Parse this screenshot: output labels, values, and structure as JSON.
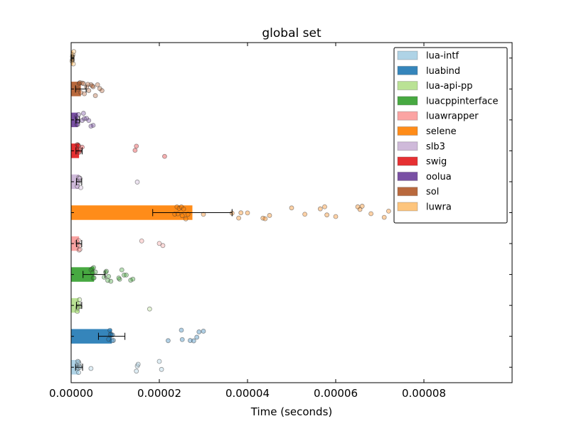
{
  "chart_data": {
    "type": "bar",
    "orientation": "horizontal",
    "title": "global set",
    "xlabel": "Time (seconds)",
    "ylabel": "",
    "xlim": [
      0,
      0.0001
    ],
    "x_ticks": [
      0,
      2e-05,
      4e-05,
      6e-05,
      8e-05
    ],
    "x_tick_labels": [
      "0.00000",
      "0.00002",
      "0.00004",
      "0.00006",
      "0.00008"
    ],
    "y_tick_labels_visible": false,
    "legend_position": "top-right",
    "series": [
      {
        "name": "lua-intf",
        "color": "#a6cee3",
        "mean": 1.8e-06,
        "err": 8e-07,
        "samples": [
          1.5e-06,
          1.6e-06,
          1.7e-06,
          1.8e-06,
          1.9e-06,
          2e-06,
          1.5e-06,
          1.7e-06,
          4.5e-06,
          1.5e-05,
          1.52e-05,
          1.48e-05,
          2.05e-05,
          2e-05
        ]
      },
      {
        "name": "luabind",
        "color": "#1f78b4",
        "mean": 9.2e-06,
        "err": 3e-06,
        "samples": [
          8.5e-06,
          8.8e-06,
          9e-06,
          9.2e-06,
          9.4e-06,
          9.6e-06,
          8.9e-06,
          9.3e-06,
          2.2e-05,
          2.5e-05,
          2.52e-05,
          2.7e-05,
          2.78e-05,
          2.85e-05,
          2.9e-05,
          3e-05
        ]
      },
      {
        "name": "lua-api-pp",
        "color": "#b2df8a",
        "mean": 1.8e-06,
        "err": 6e-07,
        "samples": [
          1.4e-06,
          1.6e-06,
          1.8e-06,
          2e-06,
          1.7e-06,
          1.9e-06,
          1.5e-06,
          1.78e-05
        ]
      },
      {
        "name": "luacppinterface",
        "color": "#33a02c",
        "mean": 5.2e-06,
        "err": 2.5e-06,
        "samples": [
          4.5e-06,
          4.8e-06,
          5e-06,
          5.2e-06,
          5.5e-06,
          4.9e-06,
          5.1e-06,
          7.5e-06,
          8e-06,
          7.8e-06,
          8.5e-06,
          1.1e-05,
          1.15e-05,
          1.2e-05,
          1.25e-05,
          1.35e-05,
          1.4e-05,
          1.08e-05,
          9e-06,
          8.3e-06
        ]
      },
      {
        "name": "luawrapper",
        "color": "#fb9a99",
        "mean": 1.8e-06,
        "err": 6e-07,
        "samples": [
          1.4e-06,
          1.6e-06,
          1.8e-06,
          2e-06,
          1.7e-06,
          1.9e-06,
          1.6e-05,
          2.08e-05,
          2e-05
        ]
      },
      {
        "name": "selene",
        "color": "#ff7f00",
        "mean": 2.75e-05,
        "err": 9e-06,
        "samples": [
          2.35e-05,
          2.4e-05,
          2.45e-05,
          2.5e-05,
          2.55e-05,
          2.6e-05,
          2.65e-05,
          2.42e-05,
          2.52e-05,
          3e-05,
          3.65e-05,
          3.8e-05,
          3.85e-05,
          4e-05,
          4.35e-05,
          4.5e-05,
          4.4e-05,
          5e-05,
          5.3e-05,
          5.65e-05,
          5.75e-05,
          5.8e-05,
          6e-05,
          6.5e-05,
          6.55e-05,
          6.6e-05,
          6.8e-05,
          7.1e-05,
          7.2e-05,
          7.45e-05,
          7.6e-05,
          7.7e-05,
          8.2e-05,
          9.4e-05
        ]
      },
      {
        "name": "slb3",
        "color": "#cab2d6",
        "mean": 1.8e-06,
        "err": 6e-07,
        "samples": [
          1.4e-06,
          1.6e-06,
          1.8e-06,
          2e-06,
          1.7e-06,
          1.9e-06,
          2.2e-06,
          1.5e-05
        ]
      },
      {
        "name": "swig",
        "color": "#e31a1c",
        "mean": 1.8e-06,
        "err": 7e-07,
        "samples": [
          1.4e-06,
          1.6e-06,
          1.8e-06,
          2e-06,
          1.7e-06,
          1.9e-06,
          2.5e-06,
          1.45e-05,
          1.48e-05,
          2.12e-05
        ]
      },
      {
        "name": "oolua",
        "color": "#6a3d9a",
        "mean": 1.5e-06,
        "err": 4e-07,
        "samples": [
          1.2e-06,
          1.4e-06,
          1.5e-06,
          1.6e-06,
          1.7e-06,
          1.3e-06,
          2.5e-06,
          3e-06,
          3.5e-06,
          4e-06,
          5e-06,
          4.5e-06,
          2.8e-06
        ]
      },
      {
        "name": "sol",
        "color": "#b15928",
        "mean": 2.2e-06,
        "err": 1.2e-06,
        "samples": [
          1.5e-06,
          1.8e-06,
          2e-06,
          2.2e-06,
          2.5e-06,
          2.8e-06,
          3e-06,
          3.5e-06,
          4e-06,
          4.5e-06,
          5e-06,
          5.5e-06,
          6e-06,
          6.5e-06,
          7e-06,
          4.8e-06,
          3.8e-06
        ]
      },
      {
        "name": "luwra",
        "color": "#fdbf6f",
        "mean": 4e-07,
        "err": 2e-07,
        "samples": [
          2e-07,
          3e-07,
          4e-07,
          5e-07,
          6e-07,
          3e-07
        ]
      }
    ]
  }
}
